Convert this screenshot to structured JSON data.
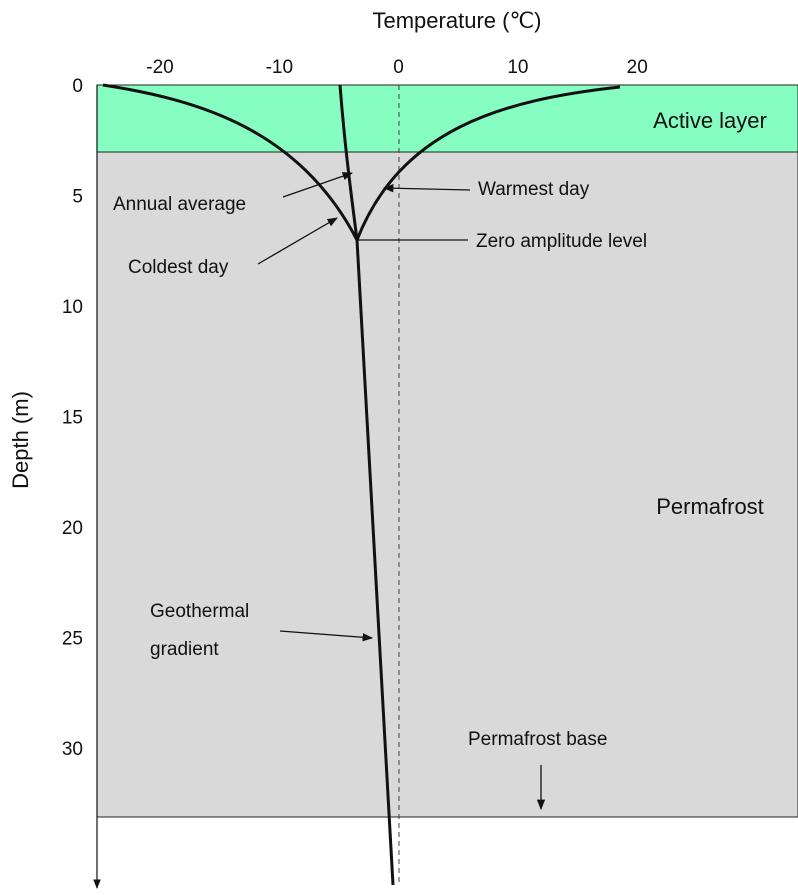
{
  "axes": {
    "x_title": "Temperature (℃)",
    "y_title": "Depth (m)",
    "x_ticks": [
      "-20",
      "-10",
      "0",
      "10",
      "20"
    ],
    "y_ticks": [
      "0",
      "5",
      "10",
      "15",
      "20",
      "25",
      "30"
    ]
  },
  "labels": {
    "active_layer": "Active layer",
    "permafrost": "Permafrost",
    "annual_average": "Annual average",
    "warmest_day": "Warmest day",
    "coldest_day": "Coldest day",
    "zero_amplitude": "Zero amplitude level",
    "geothermal": [
      "Geothermal",
      "gradient"
    ],
    "permafrost_base": "Permafrost base"
  }
}
